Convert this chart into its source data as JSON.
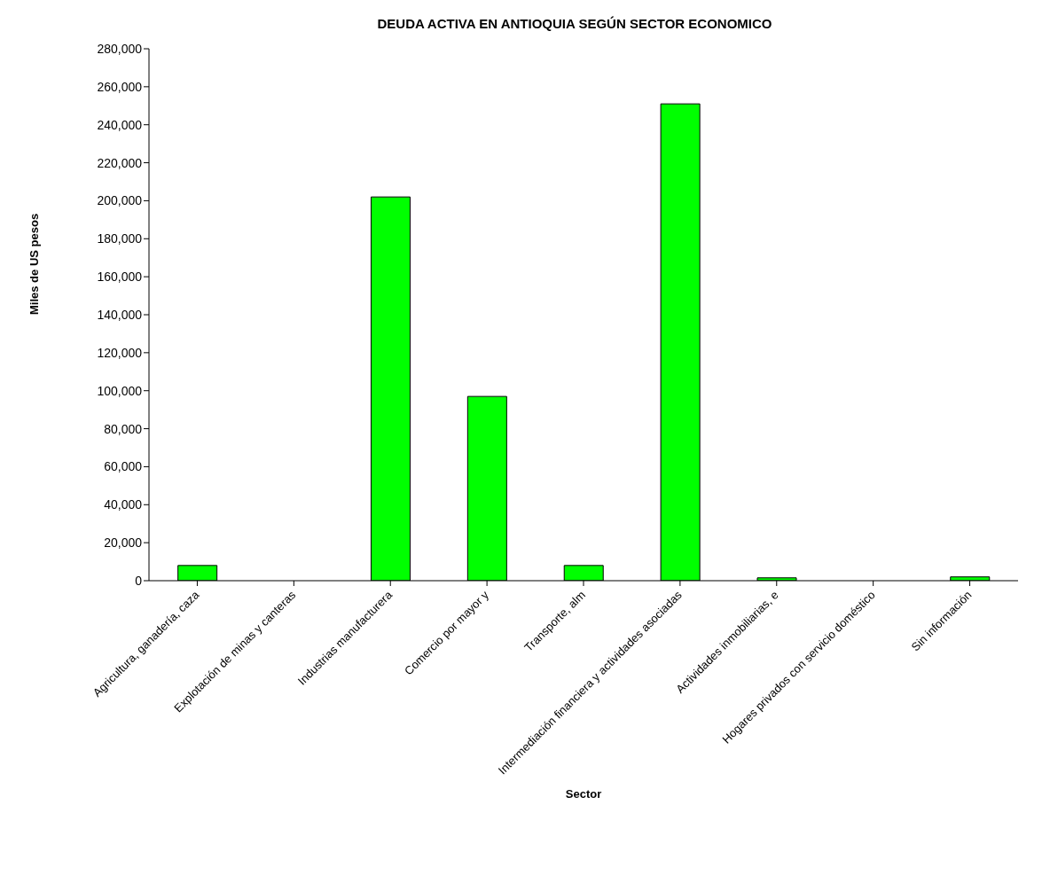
{
  "chart_data": {
    "type": "bar",
    "title": "DEUDA ACTIVA EN ANTIOQUIA SEGÚN SECTOR ECONOMICO",
    "xlabel": "Sector",
    "ylabel": "Miles de US pesos",
    "categories": [
      "Agricultura, ganadería, caza",
      "Explotación de minas y canteras",
      "Industrias manufacturera",
      "Comercio por mayor y",
      "Transporte, alm",
      "Intermediación financiera y actividades asociadas",
      "Actividades inmobiliarias, e",
      "Hogares privados con servicio doméstico",
      "Sin información"
    ],
    "values": [
      8000,
      0,
      202000,
      97000,
      8000,
      251000,
      1500,
      0,
      2000
    ],
    "color": "#00ff00",
    "ylim": [
      0,
      280000
    ],
    "yticks": [
      0,
      {
        "value": 20000,
        "label": "20,000"
      },
      {
        "value": 40000,
        "label": "40,000"
      },
      {
        "value": 60000,
        "label": "60,000"
      },
      {
        "value": 80000,
        "label": "80,000"
      },
      {
        "value": 100000,
        "label": "100,000"
      },
      {
        "value": 120000,
        "label": "120,000"
      },
      {
        "value": 140000,
        "label": "140,000"
      },
      {
        "value": 160000,
        "label": "160,000"
      },
      {
        "value": 180000,
        "label": "180,000"
      },
      {
        "value": 200000,
        "label": "200,000"
      },
      {
        "value": 220000,
        "label": "220,000"
      },
      {
        "value": 240000,
        "label": "240,000"
      },
      {
        "value": 260000,
        "label": "260,000"
      },
      {
        "value": 280000,
        "label": "280,000"
      }
    ],
    "grid": false,
    "legend": false
  }
}
